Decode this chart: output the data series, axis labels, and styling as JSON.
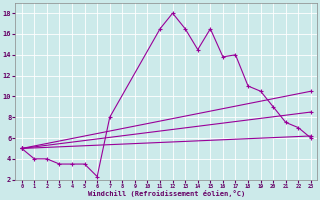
{
  "xlabel": "Windchill (Refroidissement éolien,°C)",
  "bg_color": "#cceaea",
  "line_color": "#990099",
  "xlim": [
    -0.5,
    23.5
  ],
  "ylim": [
    2,
    19
  ],
  "xticks": [
    0,
    1,
    2,
    3,
    4,
    5,
    6,
    7,
    8,
    9,
    10,
    11,
    12,
    13,
    14,
    15,
    16,
    17,
    18,
    19,
    20,
    21,
    22,
    23
  ],
  "yticks": [
    2,
    4,
    6,
    8,
    10,
    12,
    14,
    16,
    18
  ],
  "series1_x": [
    0,
    1,
    2,
    3,
    4,
    5,
    6,
    7,
    11,
    12,
    13,
    14,
    15,
    16,
    17,
    18,
    19,
    20,
    21,
    22,
    23
  ],
  "series1_y": [
    5,
    4,
    4,
    3.5,
    3.5,
    3.5,
    2.3,
    8,
    16.5,
    18,
    16.5,
    14.5,
    16.5,
    13.8,
    14,
    11,
    10.5,
    9,
    7.5,
    7,
    6
  ],
  "series2_x": [
    0,
    23
  ],
  "series2_y": [
    5,
    6.2
  ],
  "series3_x": [
    0,
    23
  ],
  "series3_y": [
    5,
    8.5
  ],
  "series4_x": [
    0,
    23
  ],
  "series4_y": [
    5,
    10.5
  ]
}
